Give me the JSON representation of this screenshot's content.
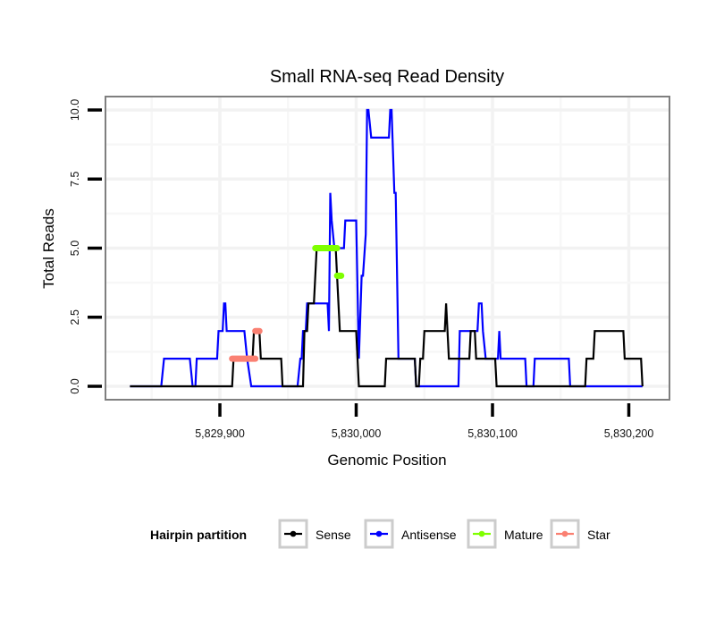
{
  "chart_data": {
    "type": "line",
    "title": "Small RNA-seq Read Density",
    "xlabel": "Genomic Position",
    "ylabel": "Total Reads",
    "xlim": [
      5829816,
      5830230
    ],
    "ylim": [
      -0.5,
      10.5
    ],
    "x_ticks": [
      5829900,
      5830000,
      5830100,
      5830200
    ],
    "x_tick_labels": [
      "5,829,900",
      "5,830,000",
      "5,830,100",
      "5,830,200"
    ],
    "y_ticks": [
      0,
      2.5,
      5,
      7.5,
      10
    ],
    "y_tick_labels": [
      "0.0",
      "2.5",
      "5.0",
      "7.5",
      "10.0"
    ],
    "grid": true,
    "legend": {
      "title": "Hairpin partition",
      "placement": "bottom",
      "entries": [
        {
          "name": "Sense",
          "color": "#000000"
        },
        {
          "name": "Antisense",
          "color": "#0000FF"
        },
        {
          "name": "Mature",
          "color": "#7FFF00"
        },
        {
          "name": "Star",
          "color": "#FA8072"
        }
      ]
    },
    "series": [
      {
        "name": "Antisense",
        "color": "#0000FF",
        "points": [
          [
            5829834,
            0
          ],
          [
            5829857,
            0
          ],
          [
            5829859,
            1
          ],
          [
            5829878,
            1
          ],
          [
            5829880,
            0
          ],
          [
            5829882,
            0
          ],
          [
            5829883,
            1
          ],
          [
            5829898,
            1
          ],
          [
            5829899,
            2
          ],
          [
            5829902,
            2
          ],
          [
            5829903,
            3
          ],
          [
            5829904,
            3
          ],
          [
            5829905,
            2
          ],
          [
            5829918,
            2
          ],
          [
            5829920,
            1
          ],
          [
            5829923,
            0
          ],
          [
            5829957,
            0
          ],
          [
            5829959,
            1
          ],
          [
            5829960,
            1
          ],
          [
            5829961,
            2
          ],
          [
            5829963,
            2
          ],
          [
            5829964,
            3
          ],
          [
            5829979,
            3
          ],
          [
            5829980,
            2
          ],
          [
            5829981,
            7
          ],
          [
            5829982,
            6
          ],
          [
            5829984,
            5
          ],
          [
            5829991,
            5
          ],
          [
            5829992,
            6
          ],
          [
            5830000,
            6
          ],
          [
            5830002,
            1
          ],
          [
            5830004,
            4
          ],
          [
            5830005,
            4
          ],
          [
            5830007,
            5.5
          ],
          [
            5830008,
            10
          ],
          [
            5830009,
            10
          ],
          [
            5830011,
            9
          ],
          [
            5830024,
            9
          ],
          [
            5830025,
            10
          ],
          [
            5830026,
            10
          ],
          [
            5830028,
            7
          ],
          [
            5830029,
            7
          ],
          [
            5830031,
            1
          ],
          [
            5830043,
            1
          ],
          [
            5830044,
            0
          ],
          [
            5830075,
            0
          ],
          [
            5830076,
            2
          ],
          [
            5830085,
            2
          ],
          [
            5830089,
            2
          ],
          [
            5830090,
            3
          ],
          [
            5830092,
            3
          ],
          [
            5830093,
            2
          ],
          [
            5830095,
            1
          ],
          [
            5830104,
            1
          ],
          [
            5830105,
            2
          ],
          [
            5830106,
            1
          ],
          [
            5830124,
            1
          ],
          [
            5830125,
            0
          ],
          [
            5830130,
            0
          ],
          [
            5830131,
            1
          ],
          [
            5830156,
            1
          ],
          [
            5830157,
            0
          ],
          [
            5830210,
            0
          ]
        ]
      },
      {
        "name": "Sense",
        "color": "#000000",
        "points": [
          [
            5829834,
            0
          ],
          [
            5829909,
            0
          ],
          [
            5829910,
            1
          ],
          [
            5829924,
            1
          ],
          [
            5829925,
            2
          ],
          [
            5829929,
            2
          ],
          [
            5829930,
            1
          ],
          [
            5829945,
            1
          ],
          [
            5829946,
            0
          ],
          [
            5829961,
            0
          ],
          [
            5829962,
            2
          ],
          [
            5829964,
            2
          ],
          [
            5829965,
            3
          ],
          [
            5829969,
            3
          ],
          [
            5829971,
            5
          ],
          [
            5829985,
            5
          ],
          [
            5829986,
            4
          ],
          [
            5829988,
            2
          ],
          [
            5830000,
            2
          ],
          [
            5830002,
            0
          ],
          [
            5830021,
            0
          ],
          [
            5830022,
            1
          ],
          [
            5830043,
            1
          ],
          [
            5830044,
            0
          ],
          [
            5830046,
            0
          ],
          [
            5830047,
            1
          ],
          [
            5830049,
            1
          ],
          [
            5830050,
            2
          ],
          [
            5830065,
            2
          ],
          [
            5830066,
            3
          ],
          [
            5830068,
            1
          ],
          [
            5830083,
            1
          ],
          [
            5830084,
            2
          ],
          [
            5830087,
            2
          ],
          [
            5830088,
            1
          ],
          [
            5830102,
            1
          ],
          [
            5830103,
            0
          ],
          [
            5830168,
            0
          ],
          [
            5830169,
            1
          ],
          [
            5830174,
            1
          ],
          [
            5830175,
            2
          ],
          [
            5830196,
            2
          ],
          [
            5830197,
            1
          ],
          [
            5830209,
            1
          ],
          [
            5830210,
            0
          ]
        ]
      },
      {
        "name": "Mature",
        "color": "#7FFF00",
        "segments": [
          [
            [
              5829970,
              5
            ],
            [
              5829986,
              5
            ]
          ],
          [
            [
              5829986,
              4
            ],
            [
              5829989,
              4
            ]
          ]
        ]
      },
      {
        "name": "Star",
        "color": "#FA8072",
        "segments": [
          [
            [
              5829909,
              1
            ],
            [
              5829926,
              1
            ]
          ],
          [
            [
              5829926,
              2
            ],
            [
              5829929,
              2
            ]
          ]
        ]
      }
    ]
  }
}
